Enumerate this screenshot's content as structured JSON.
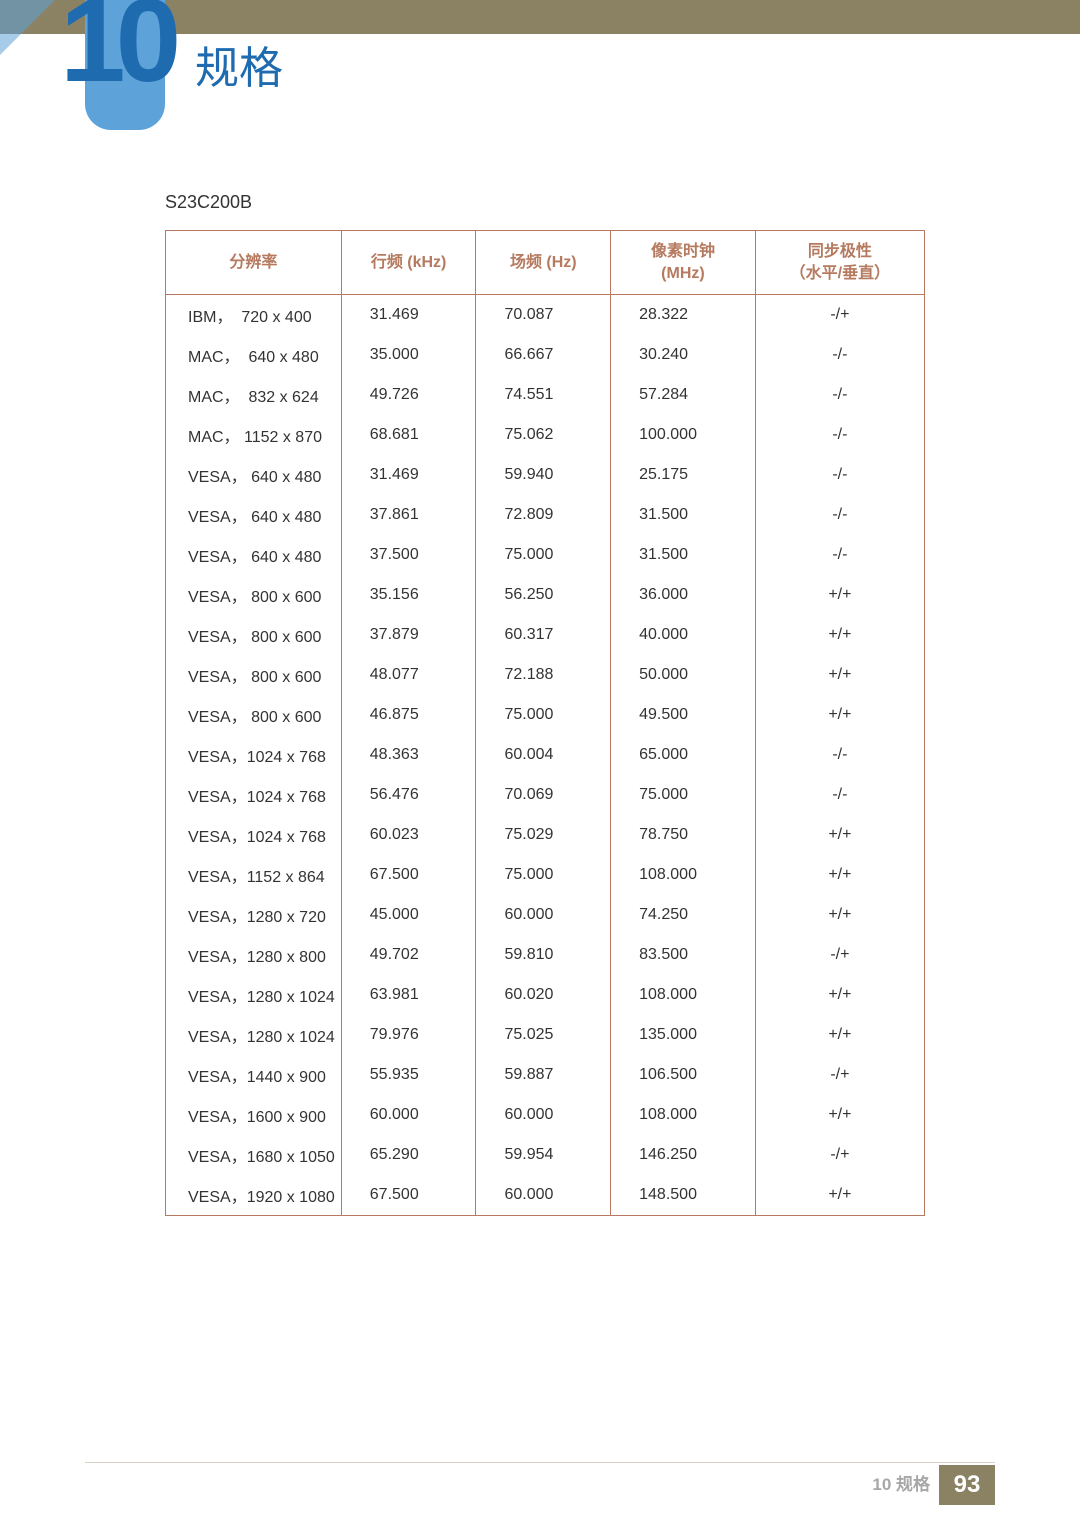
{
  "header": {
    "chapter_number": "10",
    "chapter_title": "规格",
    "accent_color": "#5da3d9",
    "title_color": "#1f6bb0",
    "bar_color": "#8b8263"
  },
  "model": "S23C200B",
  "table": {
    "border_color": "#b57a5f",
    "header_color": "#b57a5f",
    "columns": [
      "分辨率",
      "行频 (kHz)",
      "场频 (Hz)",
      "像素时钟 (MHz)",
      "同步极性 （水平/垂直）"
    ],
    "rows": [
      [
        "IBM，  720 x 400",
        "31.469",
        "70.087",
        "28.322",
        "-/+"
      ],
      [
        "MAC，  640 x 480",
        "35.000",
        "66.667",
        "30.240",
        "-/-"
      ],
      [
        "MAC，  832 x 624",
        "49.726",
        "74.551",
        "57.284",
        "-/-"
      ],
      [
        "MAC， 1152 x 870",
        "68.681",
        "75.062",
        "100.000",
        "-/-"
      ],
      [
        "VESA， 640 x 480",
        "31.469",
        "59.940",
        "25.175",
        "-/-"
      ],
      [
        "VESA， 640 x 480",
        "37.861",
        "72.809",
        "31.500",
        "-/-"
      ],
      [
        "VESA， 640 x 480",
        "37.500",
        "75.000",
        "31.500",
        "-/-"
      ],
      [
        "VESA， 800 x 600",
        "35.156",
        "56.250",
        "36.000",
        "+/+"
      ],
      [
        "VESA， 800 x 600",
        "37.879",
        "60.317",
        "40.000",
        "+/+"
      ],
      [
        "VESA， 800 x 600",
        "48.077",
        "72.188",
        "50.000",
        "+/+"
      ],
      [
        "VESA， 800 x 600",
        "46.875",
        "75.000",
        "49.500",
        "+/+"
      ],
      [
        "VESA，1024 x 768",
        "48.363",
        "60.004",
        "65.000",
        "-/-"
      ],
      [
        "VESA，1024 x 768",
        "56.476",
        "70.069",
        "75.000",
        "-/-"
      ],
      [
        "VESA，1024 x 768",
        "60.023",
        "75.029",
        "78.750",
        "+/+"
      ],
      [
        "VESA，1152 x 864",
        "67.500",
        "75.000",
        "108.000",
        "+/+"
      ],
      [
        "VESA，1280 x 720",
        "45.000",
        "60.000",
        "74.250",
        "+/+"
      ],
      [
        "VESA，1280 x 800",
        "49.702",
        "59.810",
        "83.500",
        "-/+"
      ],
      [
        "VESA，1280 x 1024",
        "63.981",
        "60.020",
        "108.000",
        "+/+"
      ],
      [
        "VESA，1280 x 1024",
        "79.976",
        "75.025",
        "135.000",
        "+/+"
      ],
      [
        "VESA，1440 x 900",
        "55.935",
        "59.887",
        "106.500",
        "-/+"
      ],
      [
        "VESA，1600 x 900",
        "60.000",
        "60.000",
        "108.000",
        "+/+"
      ],
      [
        "VESA，1680 x 1050",
        "65.290",
        "59.954",
        "146.250",
        "-/+"
      ],
      [
        "VESA，1920 x 1080",
        "67.500",
        "60.000",
        "148.500",
        "+/+"
      ]
    ]
  },
  "footer": {
    "label": "10 规格",
    "page_number": "93",
    "box_color": "#8b8263"
  }
}
